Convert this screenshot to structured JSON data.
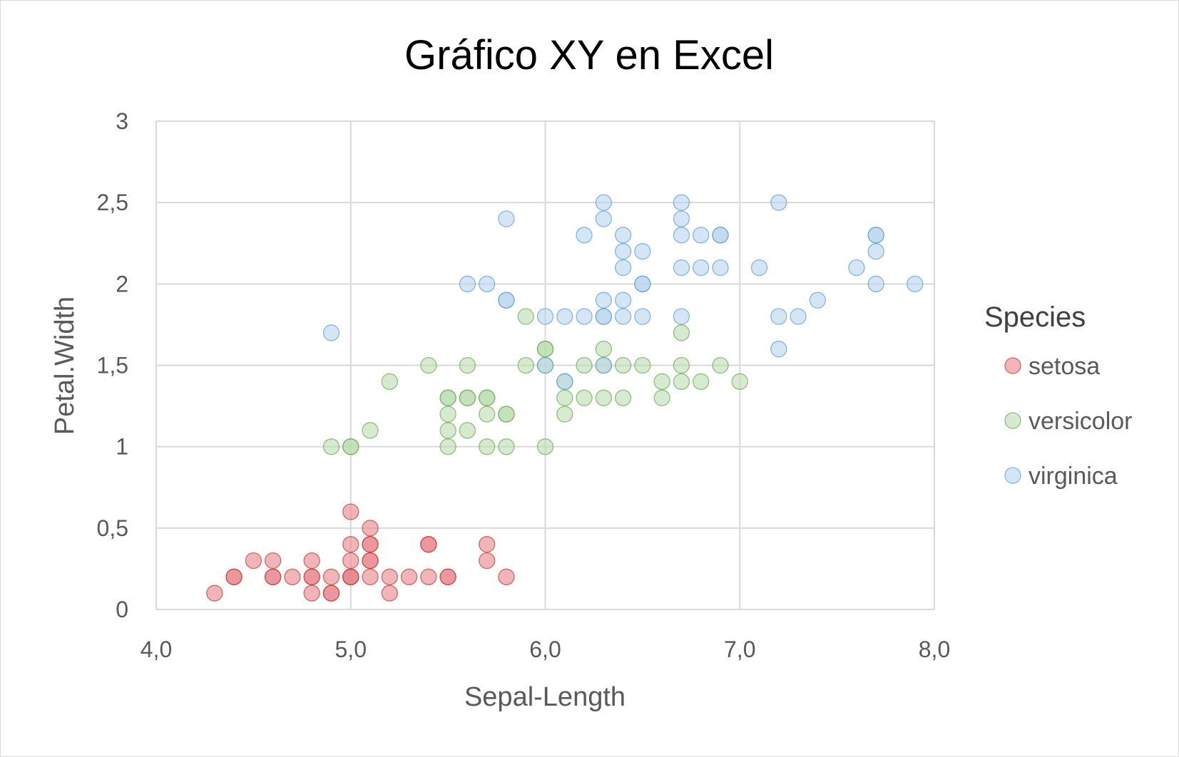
{
  "chart_data": {
    "type": "scatter",
    "title": "Gráfico XY en Excel",
    "xlabel": "Sepal-Length",
    "ylabel": "Petal.Width",
    "xlim": [
      4.0,
      8.0
    ],
    "ylim": [
      0,
      3
    ],
    "x_ticks": [
      "4,0",
      "5,0",
      "6,0",
      "7,0",
      "8,0"
    ],
    "y_ticks": [
      "0",
      "0,5",
      "1",
      "1,5",
      "2",
      "2,5",
      "3"
    ],
    "x_tick_values": [
      4,
      5,
      6,
      7,
      8
    ],
    "y_tick_values": [
      0,
      0.5,
      1,
      1.5,
      2,
      2.5,
      3
    ],
    "grid": true,
    "legend": {
      "title": "Species",
      "position": "right"
    },
    "series": [
      {
        "name": "setosa",
        "fill": "#e8838a",
        "stroke": "#c0392b",
        "points": [
          [
            4.3,
            0.1
          ],
          [
            4.4,
            0.2
          ],
          [
            4.4,
            0.2
          ],
          [
            4.5,
            0.3
          ],
          [
            4.6,
            0.2
          ],
          [
            4.6,
            0.2
          ],
          [
            4.6,
            0.3
          ],
          [
            4.7,
            0.2
          ],
          [
            4.8,
            0.2
          ],
          [
            4.8,
            0.2
          ],
          [
            4.8,
            0.1
          ],
          [
            4.8,
            0.3
          ],
          [
            4.9,
            0.2
          ],
          [
            4.9,
            0.1
          ],
          [
            4.9,
            0.1
          ],
          [
            5.0,
            0.2
          ],
          [
            5.0,
            0.2
          ],
          [
            5.0,
            0.2
          ],
          [
            5.0,
            0.6
          ],
          [
            5.0,
            0.4
          ],
          [
            5.0,
            0.3
          ],
          [
            5.1,
            0.2
          ],
          [
            5.1,
            0.4
          ],
          [
            5.1,
            0.4
          ],
          [
            5.1,
            0.3
          ],
          [
            5.1,
            0.3
          ],
          [
            5.1,
            0.5
          ],
          [
            5.2,
            0.2
          ],
          [
            5.2,
            0.1
          ],
          [
            5.3,
            0.2
          ],
          [
            5.4,
            0.4
          ],
          [
            5.4,
            0.4
          ],
          [
            5.4,
            0.2
          ],
          [
            5.5,
            0.2
          ],
          [
            5.5,
            0.2
          ],
          [
            5.7,
            0.4
          ],
          [
            5.7,
            0.3
          ],
          [
            5.8,
            0.2
          ]
        ]
      },
      {
        "name": "versicolor",
        "fill": "#b9dcae",
        "stroke": "#6aa84f",
        "points": [
          [
            4.9,
            1.0
          ],
          [
            5.0,
            1.0
          ],
          [
            5.0,
            1.0
          ],
          [
            5.1,
            1.1
          ],
          [
            5.2,
            1.4
          ],
          [
            5.4,
            1.5
          ],
          [
            5.5,
            1.3
          ],
          [
            5.5,
            1.3
          ],
          [
            5.5,
            1.2
          ],
          [
            5.5,
            1.1
          ],
          [
            5.5,
            1.0
          ],
          [
            5.6,
            1.3
          ],
          [
            5.6,
            1.3
          ],
          [
            5.6,
            1.5
          ],
          [
            5.6,
            1.1
          ],
          [
            5.7,
            1.3
          ],
          [
            5.7,
            1.3
          ],
          [
            5.7,
            1.2
          ],
          [
            5.7,
            1.0
          ],
          [
            5.8,
            1.2
          ],
          [
            5.8,
            1.2
          ],
          [
            5.8,
            1.0
          ],
          [
            5.9,
            1.5
          ],
          [
            5.9,
            1.8
          ],
          [
            6.0,
            1.6
          ],
          [
            6.0,
            1.6
          ],
          [
            6.0,
            1.5
          ],
          [
            6.0,
            1.0
          ],
          [
            6.1,
            1.4
          ],
          [
            6.1,
            1.3
          ],
          [
            6.1,
            1.2
          ],
          [
            6.2,
            1.5
          ],
          [
            6.2,
            1.3
          ],
          [
            6.3,
            1.6
          ],
          [
            6.3,
            1.3
          ],
          [
            6.3,
            1.5
          ],
          [
            6.4,
            1.5
          ],
          [
            6.4,
            1.3
          ],
          [
            6.5,
            1.5
          ],
          [
            6.6,
            1.4
          ],
          [
            6.6,
            1.3
          ],
          [
            6.7,
            1.7
          ],
          [
            6.7,
            1.5
          ],
          [
            6.7,
            1.4
          ],
          [
            6.8,
            1.4
          ],
          [
            6.9,
            1.5
          ],
          [
            7.0,
            1.4
          ]
        ]
      },
      {
        "name": "virginica",
        "fill": "#b8d3ef",
        "stroke": "#5b9bd5",
        "points": [
          [
            4.9,
            1.7
          ],
          [
            5.6,
            2.0
          ],
          [
            5.7,
            2.0
          ],
          [
            5.8,
            2.4
          ],
          [
            5.8,
            1.9
          ],
          [
            5.8,
            1.9
          ],
          [
            6.0,
            1.8
          ],
          [
            6.0,
            1.5
          ],
          [
            6.1,
            1.8
          ],
          [
            6.1,
            1.4
          ],
          [
            6.2,
            2.3
          ],
          [
            6.2,
            1.8
          ],
          [
            6.3,
            2.5
          ],
          [
            6.3,
            2.4
          ],
          [
            6.3,
            1.9
          ],
          [
            6.3,
            1.8
          ],
          [
            6.3,
            1.8
          ],
          [
            6.3,
            1.5
          ],
          [
            6.4,
            2.3
          ],
          [
            6.4,
            2.2
          ],
          [
            6.4,
            2.1
          ],
          [
            6.4,
            1.9
          ],
          [
            6.4,
            1.8
          ],
          [
            6.5,
            2.2
          ],
          [
            6.5,
            2.0
          ],
          [
            6.5,
            2.0
          ],
          [
            6.5,
            1.8
          ],
          [
            6.7,
            2.5
          ],
          [
            6.7,
            2.4
          ],
          [
            6.7,
            2.3
          ],
          [
            6.7,
            2.1
          ],
          [
            6.7,
            1.8
          ],
          [
            6.8,
            2.3
          ],
          [
            6.8,
            2.1
          ],
          [
            6.9,
            2.3
          ],
          [
            6.9,
            2.3
          ],
          [
            6.9,
            2.1
          ],
          [
            7.1,
            2.1
          ],
          [
            7.2,
            2.5
          ],
          [
            7.2,
            1.8
          ],
          [
            7.2,
            1.6
          ],
          [
            7.3,
            1.8
          ],
          [
            7.4,
            1.9
          ],
          [
            7.6,
            2.1
          ],
          [
            7.7,
            2.3
          ],
          [
            7.7,
            2.3
          ],
          [
            7.7,
            2.2
          ],
          [
            7.7,
            2.0
          ],
          [
            7.9,
            2.0
          ]
        ]
      }
    ]
  }
}
